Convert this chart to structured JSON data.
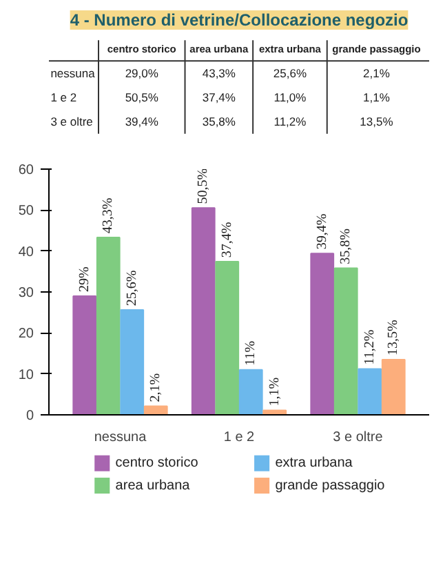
{
  "chart_data": {
    "type": "bar",
    "title": "4 - Numero di vetrine/Collocazione negozio",
    "categories": [
      "nessuna",
      "1 e 2",
      "3 e oltre"
    ],
    "series": [
      {
        "name": "centro storico",
        "color": "#a865b0",
        "values": [
          29.0,
          50.5,
          39.4
        ],
        "value_labels": [
          "29%",
          "50,5%",
          "39,4%"
        ]
      },
      {
        "name": "area urbana",
        "color": "#7fcc80",
        "values": [
          43.3,
          37.4,
          35.8
        ],
        "value_labels": [
          "43,3%",
          "37,4%",
          "35,8%"
        ]
      },
      {
        "name": "extra urbana",
        "color": "#6cb8ec",
        "values": [
          25.6,
          11.0,
          11.2
        ],
        "value_labels": [
          "25,6%",
          "11%",
          "11,2%"
        ]
      },
      {
        "name": "grande passaggio",
        "color": "#fcae7c",
        "values": [
          2.1,
          1.1,
          13.5
        ],
        "value_labels": [
          "2,1%",
          "1,1%",
          "13,5%"
        ]
      }
    ],
    "ylim": [
      0,
      60
    ],
    "yticks": [
      0,
      10,
      20,
      30,
      40,
      50,
      60
    ],
    "legend": "bottom",
    "annotations": [
      "centro storico",
      "area urbana",
      "extra urbana",
      "grande passaggio",
      "nessuna",
      "29,0%",
      "43,3%",
      "25,6%",
      "2,1%",
      "1 e 2",
      "50,5%",
      "37,4%",
      "11,0%",
      "1,1%",
      "3 e oltre",
      "39,4%",
      "35,8%",
      "11,2%",
      "13,5%"
    ]
  }
}
